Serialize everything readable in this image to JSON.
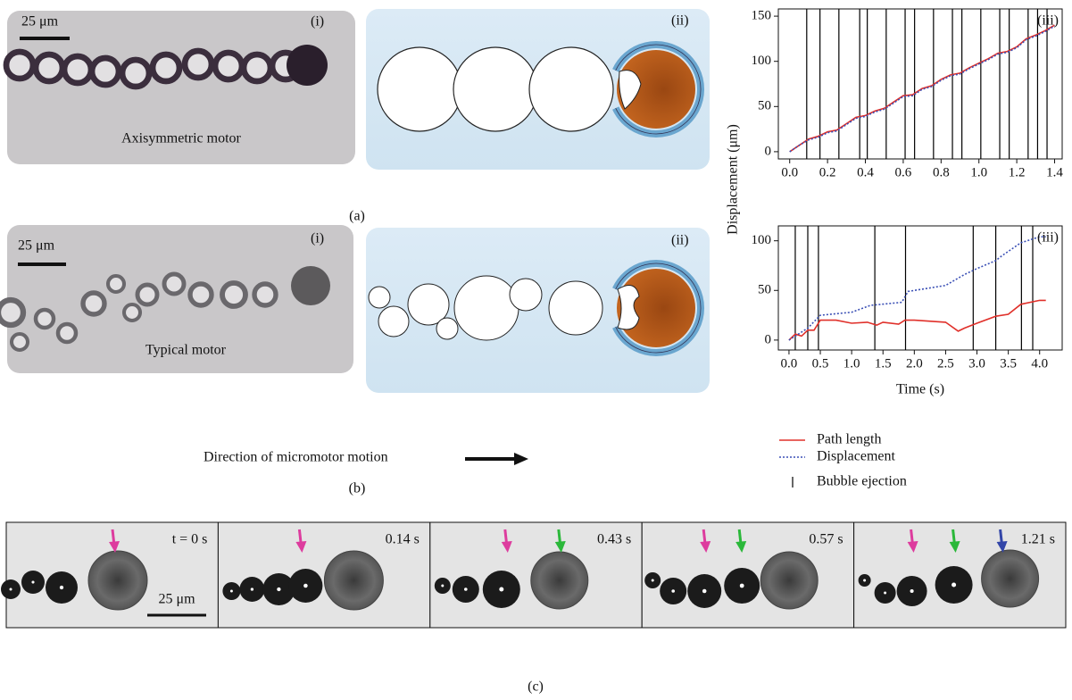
{
  "panel_a": {
    "label": "(a)",
    "photo": {
      "scale_bar": "25 μm",
      "tag": "(i)",
      "caption": "Axisymmetric motor"
    },
    "schematic": {
      "tag": "(ii)"
    }
  },
  "panel_b": {
    "label": "(b)",
    "photo": {
      "scale_bar": "25 μm",
      "tag": "(i)",
      "caption": "Typical motor"
    },
    "schematic": {
      "tag": "(ii)"
    },
    "direction": "Direction of micromotor motion"
  },
  "panel_c": {
    "label": "(c)",
    "scale_bar": "25 μm",
    "frames": [
      {
        "time": "t = 0 s"
      },
      {
        "time": "0.14 s"
      },
      {
        "time": "0.43 s"
      },
      {
        "time": "0.57 s"
      },
      {
        "time": "1.21 s"
      }
    ]
  },
  "chart_data": [
    {
      "type": "line",
      "tag": "(iii)",
      "ylabel": "Displacement (μm)",
      "xlim": [
        -0.06,
        1.44
      ],
      "ylim": [
        -8,
        158
      ],
      "xticks": [
        {
          "value": 0,
          "label": "0.0"
        },
        0.2,
        0.4,
        0.6,
        0.8,
        {
          "value": 1,
          "label": "1.0"
        },
        1.2,
        1.4
      ],
      "yticks": [
        0,
        50,
        100,
        150
      ],
      "series": [
        {
          "color": "#e0302a",
          "line_style": "solid",
          "x": [
            0,
            0.05,
            0.1,
            0.15,
            0.2,
            0.25,
            0.3,
            0.35,
            0.4,
            0.45,
            0.5,
            0.55,
            0.6,
            0.65,
            0.7,
            0.75,
            0.8,
            0.85,
            0.9,
            0.95,
            1.0,
            1.05,
            1.1,
            1.15,
            1.2,
            1.25,
            1.3,
            1.35,
            1.4
          ],
          "values": [
            0,
            7,
            14,
            17,
            22,
            24,
            31,
            38,
            40,
            45,
            48,
            55,
            62,
            63,
            70,
            73,
            80,
            85,
            87,
            93,
            98,
            103,
            109,
            111,
            116,
            125,
            129,
            134,
            140
          ]
        },
        {
          "color": "#3a4fb5",
          "line_style": "dotted",
          "x": [
            0,
            0.05,
            0.1,
            0.15,
            0.2,
            0.25,
            0.3,
            0.35,
            0.4,
            0.45,
            0.5,
            0.55,
            0.6,
            0.65,
            0.7,
            0.75,
            0.8,
            0.85,
            0.9,
            0.95,
            1.0,
            1.05,
            1.1,
            1.15,
            1.2,
            1.25,
            1.3,
            1.35,
            1.4
          ],
          "values": [
            0,
            7,
            13,
            16,
            21,
            23,
            30,
            37,
            39,
            44,
            47,
            54,
            61,
            62,
            69,
            72,
            79,
            84,
            86,
            92,
            97,
            102,
            108,
            110,
            115,
            124,
            128,
            133,
            139
          ]
        }
      ],
      "ejections": {
        "color": "#000000",
        "x": [
          0.09,
          0.16,
          0.26,
          0.37,
          0.41,
          0.51,
          0.61,
          0.66,
          0.76,
          0.86,
          0.91,
          1.01,
          1.11,
          1.16,
          1.26,
          1.31,
          1.36
        ]
      }
    },
    {
      "type": "line",
      "tag": "(iii)",
      "xlabel": "Time (s)",
      "xlim": [
        -0.17,
        4.36
      ],
      "ylim": [
        -10,
        115
      ],
      "xticks": [
        {
          "value": 0,
          "label": "0.0"
        },
        0.5,
        {
          "value": 1,
          "label": "1.0"
        },
        1.5,
        {
          "value": 2,
          "label": "2.0"
        },
        2.5,
        {
          "value": 3,
          "label": "3.0"
        },
        3.5,
        {
          "value": 4,
          "label": "4.0"
        }
      ],
      "yticks": [
        0,
        50,
        100
      ],
      "series": [
        {
          "name": "Path length",
          "color": "#e0302a",
          "line_style": "solid",
          "x": [
            0,
            0.1,
            0.2,
            0.3,
            0.4,
            0.5,
            0.75,
            1.0,
            1.25,
            1.4,
            1.5,
            1.75,
            1.85,
            2.0,
            2.5,
            2.7,
            2.8,
            3.0,
            3.3,
            3.5,
            3.7,
            4.0,
            4.1
          ],
          "values": [
            0,
            6,
            4,
            10,
            10,
            20,
            20,
            17,
            18,
            15,
            18,
            16,
            20,
            20,
            18,
            9,
            12,
            17,
            24,
            26,
            36,
            40,
            40
          ]
        },
        {
          "name": "Displacement",
          "color": "#3a4fb5",
          "line_style": "dotted",
          "x": [
            0,
            0.3,
            0.5,
            1.0,
            1.3,
            1.8,
            1.9,
            2.5,
            2.8,
            3.0,
            3.3,
            3.4,
            3.7,
            4.0,
            4.1
          ],
          "values": [
            0,
            12,
            25,
            28,
            35,
            38,
            49,
            55,
            66,
            72,
            80,
            85,
            98,
            104,
            104
          ]
        }
      ],
      "ejections": {
        "name": "Bubble ejection",
        "color": "#000000",
        "x": [
          0.1,
          0.3,
          0.47,
          1.37,
          1.86,
          2.94,
          3.3,
          3.71,
          3.89
        ]
      }
    }
  ]
}
